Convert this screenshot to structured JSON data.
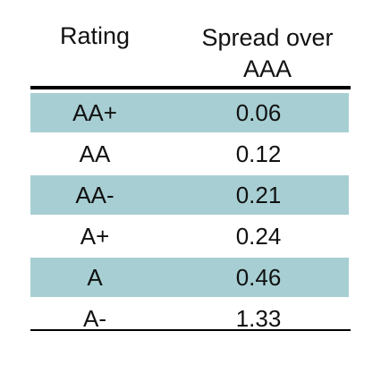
{
  "table": {
    "headers": {
      "rating": "Rating",
      "spread_line1": "Spread over",
      "spread_line2": "AAA"
    },
    "rows": [
      {
        "rating": "AA+",
        "spread": "0.06"
      },
      {
        "rating": "AA",
        "spread": "0.12"
      },
      {
        "rating": "AA-",
        "spread": "0.21"
      },
      {
        "rating": "A+",
        "spread": "0.24"
      },
      {
        "rating": "A",
        "spread": "0.46"
      },
      {
        "rating": "A-",
        "spread": "1.33"
      }
    ],
    "colors": {
      "shaded_row": "#a7cfd3",
      "plain_row": "#ffffff",
      "rule": "#000000"
    }
  }
}
